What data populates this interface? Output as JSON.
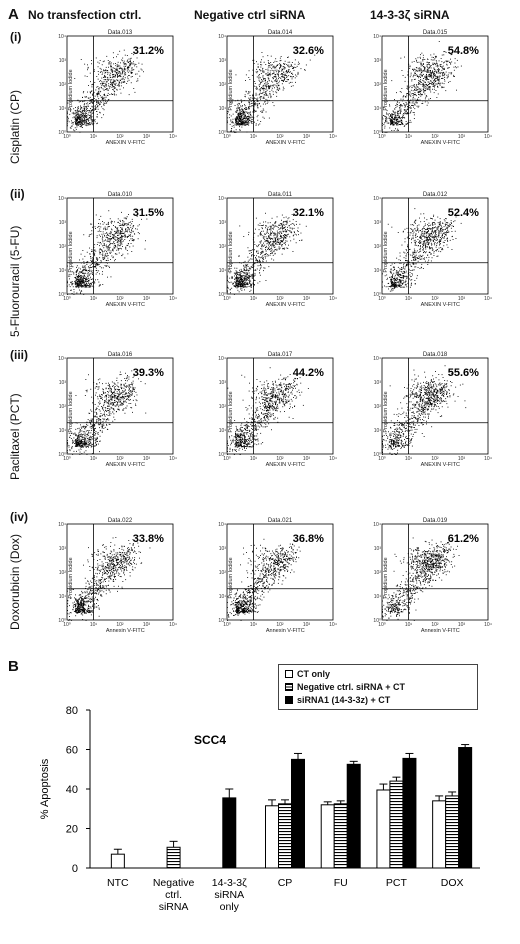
{
  "panel_a": {
    "label": "A",
    "column_headers": [
      "No transfection ctrl.",
      "Negative ctrl siRNA",
      "14-3-3ζ siRNA"
    ],
    "rows": [
      {
        "roman": "(i)",
        "drug": "Cisplatin (CP)"
      },
      {
        "roman": "(ii)",
        "drug": "5-Fluorouracil (5-FU)"
      },
      {
        "roman": "(iii)",
        "drug": "Paclitaxel (PCT)"
      },
      {
        "roman": "(iv)",
        "drug": "Doxorubicin (Dox)"
      }
    ]
  },
  "panel_b": {
    "label": "B",
    "legend": [
      "CT only",
      "Negative ctrl. siRNA + CT",
      "siRNA1 (14-3-3z) + CT"
    ]
  },
  "colors": {
    "bar_ct": "#ffffff",
    "bar_neg": "#ffffff",
    "bar_sirna": "#000000",
    "stroke": "#000000"
  },
  "chart_data": [
    {
      "type": "scatter",
      "title": "Data.013",
      "xlabel": "ANEXIN V-FITC",
      "ylabel": "Propidium Iodide",
      "percent_label": "31.2%",
      "xscale": "log",
      "yscale": "log",
      "xlim": [
        1,
        10000
      ],
      "ylim": [
        1,
        10000
      ],
      "x_ticks": [
        "10⁰",
        "10¹",
        "10²",
        "10³",
        "10⁴"
      ],
      "y_ticks": [
        "10⁰",
        "10¹",
        "10²",
        "10³",
        "10⁴"
      ],
      "gate_x": 10,
      "gate_y": 20
    },
    {
      "type": "scatter",
      "title": "Data.014",
      "xlabel": "ANEXIN V-FITC",
      "ylabel": "Propidium Iodide",
      "percent_label": "32.6%",
      "xscale": "log",
      "yscale": "log",
      "xlim": [
        1,
        10000
      ],
      "ylim": [
        1,
        10000
      ],
      "x_ticks": [
        "10⁰",
        "10¹",
        "10²",
        "10³",
        "10⁴"
      ],
      "y_ticks": [
        "10⁰",
        "10¹",
        "10²",
        "10³",
        "10⁴"
      ],
      "gate_x": 10,
      "gate_y": 20
    },
    {
      "type": "scatter",
      "title": "Data.015",
      "xlabel": "ANEXIN V-FITC",
      "ylabel": "Propidium Iodide",
      "percent_label": "54.8%",
      "xscale": "log",
      "yscale": "log",
      "xlim": [
        1,
        10000
      ],
      "ylim": [
        1,
        10000
      ],
      "x_ticks": [
        "10⁰",
        "10¹",
        "10²",
        "10³",
        "10⁴"
      ],
      "y_ticks": [
        "10⁰",
        "10¹",
        "10²",
        "10³",
        "10⁴"
      ],
      "gate_x": 10,
      "gate_y": 20
    },
    {
      "type": "scatter",
      "title": "Data.010",
      "xlabel": "ANEXIN V-FITC",
      "ylabel": "Propidium Iodide",
      "percent_label": "31.5%",
      "xscale": "log",
      "yscale": "log",
      "xlim": [
        1,
        10000
      ],
      "ylim": [
        1,
        10000
      ],
      "x_ticks": [
        "10⁰",
        "10¹",
        "10²",
        "10³",
        "10⁴"
      ],
      "y_ticks": [
        "10⁰",
        "10¹",
        "10²",
        "10³",
        "10⁴"
      ],
      "gate_x": 10,
      "gate_y": 20
    },
    {
      "type": "scatter",
      "title": "Data.011",
      "xlabel": "ANEXIN V-FITC",
      "ylabel": "Propidium Iodide",
      "percent_label": "32.1%",
      "xscale": "log",
      "yscale": "log",
      "xlim": [
        1,
        10000
      ],
      "ylim": [
        1,
        10000
      ],
      "x_ticks": [
        "10⁰",
        "10¹",
        "10²",
        "10³",
        "10⁴"
      ],
      "y_ticks": [
        "10⁰",
        "10¹",
        "10²",
        "10³",
        "10⁴"
      ],
      "gate_x": 10,
      "gate_y": 20
    },
    {
      "type": "scatter",
      "title": "Data.012",
      "xlabel": "ANEXIN V-FITC",
      "ylabel": "Propidium Iodide",
      "percent_label": "52.4%",
      "xscale": "log",
      "yscale": "log",
      "xlim": [
        1,
        10000
      ],
      "ylim": [
        1,
        10000
      ],
      "x_ticks": [
        "10⁰",
        "10¹",
        "10²",
        "10³",
        "10⁴"
      ],
      "y_ticks": [
        "10⁰",
        "10¹",
        "10²",
        "10³",
        "10⁴"
      ],
      "gate_x": 10,
      "gate_y": 20
    },
    {
      "type": "scatter",
      "title": "Data.016",
      "xlabel": "ANEXIN V-FITC",
      "ylabel": "Propidium Iodide",
      "percent_label": "39.3%",
      "xscale": "log",
      "yscale": "log",
      "xlim": [
        1,
        10000
      ],
      "ylim": [
        1,
        10000
      ],
      "x_ticks": [
        "10⁰",
        "10¹",
        "10²",
        "10³",
        "10⁴"
      ],
      "y_ticks": [
        "10⁰",
        "10¹",
        "10²",
        "10³",
        "10⁴"
      ],
      "gate_x": 10,
      "gate_y": 20
    },
    {
      "type": "scatter",
      "title": "Data.017",
      "xlabel": "ANEXIN V-FITC",
      "ylabel": "Propidium Iodide",
      "percent_label": "44.2%",
      "xscale": "log",
      "yscale": "log",
      "xlim": [
        1,
        10000
      ],
      "ylim": [
        1,
        10000
      ],
      "x_ticks": [
        "10⁰",
        "10¹",
        "10²",
        "10³",
        "10⁴"
      ],
      "y_ticks": [
        "10⁰",
        "10¹",
        "10²",
        "10³",
        "10⁴"
      ],
      "gate_x": 10,
      "gate_y": 20
    },
    {
      "type": "scatter",
      "title": "Data.018",
      "xlabel": "ANEXIN V-FITC",
      "ylabel": "Propidium Iodide",
      "percent_label": "55.6%",
      "xscale": "log",
      "yscale": "log",
      "xlim": [
        1,
        10000
      ],
      "ylim": [
        1,
        10000
      ],
      "x_ticks": [
        "10⁰",
        "10¹",
        "10²",
        "10³",
        "10⁴"
      ],
      "y_ticks": [
        "10⁰",
        "10¹",
        "10²",
        "10³",
        "10⁴"
      ],
      "gate_x": 10,
      "gate_y": 20
    },
    {
      "type": "scatter",
      "title": "Data.022",
      "xlabel": "Annexin V-FITC",
      "ylabel": "Propidium Iodide",
      "percent_label": "33.8%",
      "xscale": "log",
      "yscale": "log",
      "xlim": [
        1,
        10000
      ],
      "ylim": [
        1,
        10000
      ],
      "x_ticks": [
        "10⁰",
        "10¹",
        "10²",
        "10³",
        "10⁴"
      ],
      "y_ticks": [
        "10⁰",
        "10¹",
        "10²",
        "10³",
        "10⁴"
      ],
      "gate_x": 10,
      "gate_y": 20
    },
    {
      "type": "scatter",
      "title": "Data.021",
      "xlabel": "Annexin V-FITC",
      "ylabel": "Propidium Iodide",
      "percent_label": "36.8%",
      "xscale": "log",
      "yscale": "log",
      "xlim": [
        1,
        10000
      ],
      "ylim": [
        1,
        10000
      ],
      "x_ticks": [
        "10⁰",
        "10¹",
        "10²",
        "10³",
        "10⁴"
      ],
      "y_ticks": [
        "10⁰",
        "10¹",
        "10²",
        "10³",
        "10⁴"
      ],
      "gate_x": 10,
      "gate_y": 20
    },
    {
      "type": "scatter",
      "title": "Data.019",
      "xlabel": "Annexin V-FITC",
      "ylabel": "Propidium Iodide",
      "percent_label": "61.2%",
      "xscale": "log",
      "yscale": "log",
      "xlim": [
        1,
        10000
      ],
      "ylim": [
        1,
        10000
      ],
      "x_ticks": [
        "10⁰",
        "10¹",
        "10²",
        "10³",
        "10⁴"
      ],
      "y_ticks": [
        "10⁰",
        "10¹",
        "10²",
        "10³",
        "10⁴"
      ],
      "gate_x": 10,
      "gate_y": 20
    },
    {
      "type": "bar",
      "title": "SCC4",
      "xlabel": "",
      "ylabel": "% Apoptosis",
      "ylim": [
        0,
        80
      ],
      "yticks": [
        0,
        20,
        40,
        60,
        80
      ],
      "grid": false,
      "legend_position": "top-right",
      "categories": [
        "NTC",
        "Negative ctrl. siRNA",
        "14-3-3ζ siRNA only",
        "CP",
        "FU",
        "PCT",
        "DOX"
      ],
      "category_labels": [
        [
          "NTC"
        ],
        [
          "Negative",
          "ctrl.",
          "siRNA"
        ],
        [
          "14-3-3ζ",
          "siRNA",
          "only"
        ],
        [
          "CP"
        ],
        [
          "FU"
        ],
        [
          "PCT"
        ],
        [
          "DOX"
        ]
      ],
      "series": [
        {
          "name": "CT only",
          "values": [
            7,
            null,
            null,
            31.5,
            32,
            39.5,
            34
          ],
          "errors": [
            2.5,
            null,
            null,
            3,
            1.5,
            3,
            2.5
          ]
        },
        {
          "name": "Negative ctrl. siRNA + CT",
          "values": [
            null,
            10.5,
            null,
            32.5,
            32.5,
            44,
            36.5
          ],
          "errors": [
            null,
            3,
            null,
            2,
            1.5,
            2,
            2
          ]
        },
        {
          "name": "siRNA1 (14-3-3z) + CT",
          "values": [
            null,
            null,
            35.5,
            55,
            52.5,
            55.5,
            61
          ],
          "errors": [
            null,
            null,
            4.5,
            3,
            1.5,
            2.5,
            1.5
          ]
        }
      ]
    }
  ]
}
